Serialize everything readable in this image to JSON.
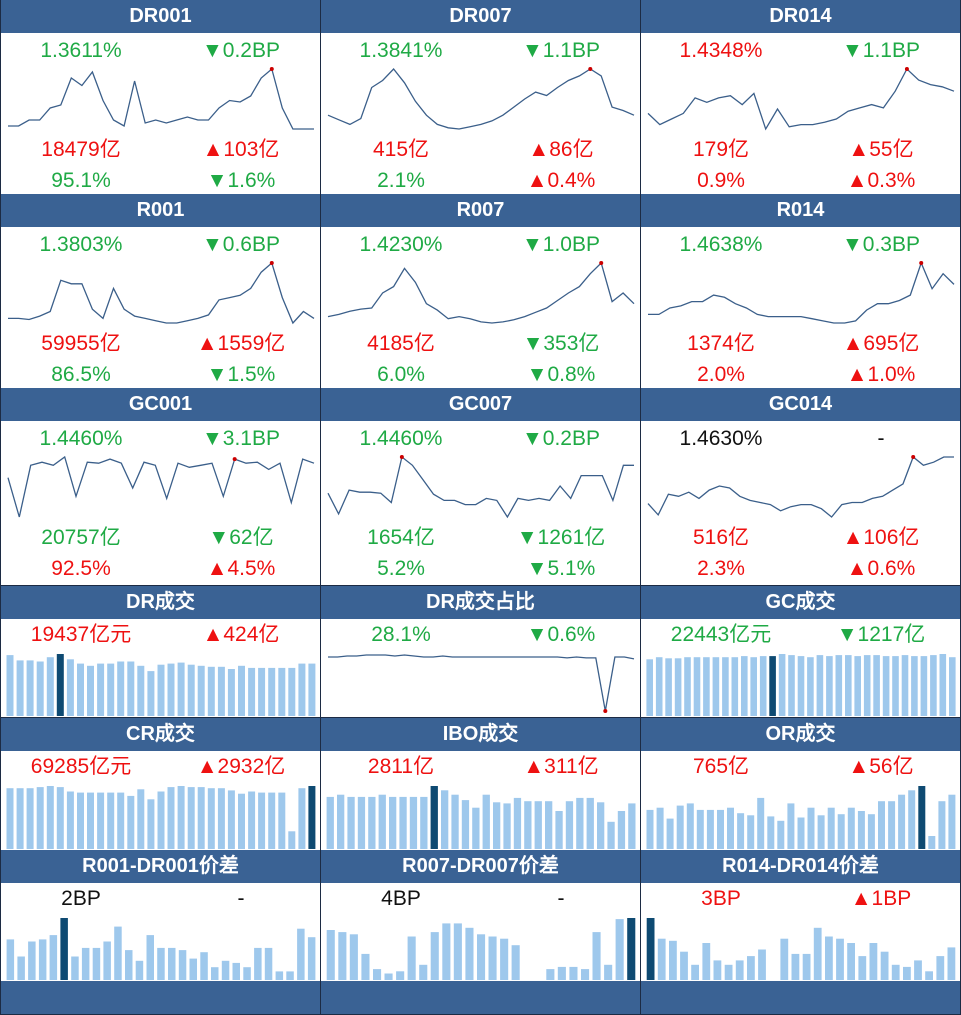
{
  "colors": {
    "header_bg": "#3a6294",
    "up": "#ee1111",
    "down": "#1faa45",
    "line": "#3b5f8a",
    "bar": "#9ec8ec",
    "bar_current": "#0e4a72",
    "peak": "#cc0000"
  },
  "panels": [
    {
      "id": "dr001",
      "title": "DR001",
      "rate": "1.3611%",
      "rate_color": "g",
      "rate_change": "▼0.2BP",
      "rate_change_color": "g",
      "volume": "18479亿",
      "volume_color": "r",
      "volume_change": "▲103亿",
      "volume_change_color": "r",
      "share": "95.1%",
      "share_color": "g",
      "share_change": "▼1.6%",
      "share_change_color": "g",
      "chart_data": {
        "type": "line",
        "values": [
          42,
          42,
          38,
          38,
          30,
          28,
          10,
          15,
          6,
          25,
          38,
          42,
          12,
          40,
          38,
          40,
          38,
          36,
          38,
          38,
          30,
          25,
          26,
          22,
          10,
          4,
          30,
          44,
          44,
          44
        ],
        "peak_index": 25
      }
    },
    {
      "id": "dr007",
      "title": "DR007",
      "rate": "1.3841%",
      "rate_color": "g",
      "rate_change": "▼1.1BP",
      "rate_change_color": "g",
      "volume": "415亿",
      "volume_color": "r",
      "volume_change": "▲86亿",
      "volume_change_color": "r",
      "share": "2.1%",
      "share_color": "g",
      "share_change": "▲0.4%",
      "share_change_color": "r",
      "chart_data": {
        "type": "line",
        "values": [
          42,
          46,
          50,
          45,
          18,
          12,
          2,
          14,
          30,
          42,
          50,
          53,
          54,
          52,
          50,
          47,
          42,
          35,
          28,
          22,
          25,
          18,
          12,
          8,
          2,
          8,
          35,
          38,
          42
        ],
        "peak_index": 24
      }
    },
    {
      "id": "dr014",
      "title": "DR014",
      "rate": "1.4348%",
      "rate_color": "r",
      "rate_change": "▼1.1BP",
      "rate_change_color": "g",
      "volume": "179亿",
      "volume_color": "r",
      "volume_change": "▲55亿",
      "volume_change_color": "r",
      "share": "0.9%",
      "share_color": "r",
      "share_change": "▲0.3%",
      "share_change_color": "r",
      "chart_data": {
        "type": "line",
        "values": [
          40,
          50,
          45,
          40,
          26,
          30,
          26,
          24,
          32,
          22,
          54,
          36,
          52,
          50,
          50,
          48,
          45,
          38,
          35,
          32,
          35,
          20,
          0,
          10,
          14,
          16,
          20
        ],
        "peak_index": 22
      }
    },
    {
      "id": "r001",
      "title": "R001",
      "rate": "1.3803%",
      "rate_color": "g",
      "rate_change": "▼0.6BP",
      "rate_change_color": "g",
      "volume": "59955亿",
      "volume_color": "r",
      "volume_change": "▲1559亿",
      "volume_change_color": "r",
      "share": "86.5%",
      "share_color": "g",
      "share_change": "▼1.5%",
      "share_change_color": "g",
      "chart_data": {
        "type": "line",
        "values": [
          48,
          48,
          49,
          46,
          42,
          15,
          18,
          18,
          40,
          48,
          22,
          40,
          46,
          48,
          50,
          52,
          52,
          50,
          48,
          45,
          32,
          30,
          28,
          22,
          8,
          0,
          30,
          52,
          42,
          48
        ],
        "peak_index": 25
      }
    },
    {
      "id": "r007",
      "title": "R007",
      "rate": "1.4230%",
      "rate_color": "g",
      "rate_change": "▼1.0BP",
      "rate_change_color": "g",
      "volume": "4185亿",
      "volume_color": "r",
      "volume_change": "▼353亿",
      "volume_change_color": "g",
      "share": "6.0%",
      "share_color": "g",
      "share_change": "▼0.8%",
      "share_change_color": "g",
      "chart_data": {
        "type": "line",
        "values": [
          50,
          48,
          45,
          43,
          42,
          28,
          22,
          5,
          18,
          38,
          44,
          52,
          50,
          52,
          55,
          56,
          55,
          53,
          50,
          46,
          42,
          35,
          28,
          22,
          10,
          0,
          36,
          28,
          38
        ],
        "peak_index": 25
      }
    },
    {
      "id": "r014",
      "title": "R014",
      "rate": "1.4638%",
      "rate_color": "g",
      "rate_change": "▼0.3BP",
      "rate_change_color": "g",
      "volume": "1374亿",
      "volume_color": "r",
      "volume_change": "▲695亿",
      "volume_change_color": "r",
      "share": "2.0%",
      "share_color": "r",
      "share_change": "▲1.0%",
      "share_change_color": "r",
      "chart_data": {
        "type": "line",
        "values": [
          48,
          48,
          42,
          40,
          36,
          36,
          30,
          32,
          38,
          42,
          48,
          50,
          50,
          50,
          50,
          52,
          54,
          56,
          56,
          54,
          44,
          38,
          38,
          35,
          30,
          0,
          24,
          10,
          20
        ],
        "peak_index": 25
      }
    },
    {
      "id": "gc001",
      "title": "GC001",
      "rate": "1.4460%",
      "rate_color": "g",
      "rate_change": "▼3.1BP",
      "rate_change_color": "g",
      "volume": "20757亿",
      "volume_color": "g",
      "volume_change": "▼62亿",
      "volume_change_color": "g",
      "share": "92.5%",
      "share_color": "r",
      "share_change": "▲4.5%",
      "share_change_color": "r",
      "chart_data": {
        "type": "line",
        "values": [
          20,
          58,
          8,
          5,
          8,
          0,
          38,
          5,
          6,
          2,
          6,
          30,
          5,
          8,
          40,
          6,
          10,
          8,
          6,
          38,
          2,
          6,
          5,
          12,
          6,
          44,
          2,
          6
        ],
        "peak_index": 20
      }
    },
    {
      "id": "gc007",
      "title": "GC007",
      "rate": "1.4460%",
      "rate_color": "g",
      "rate_change": "▼0.2BP",
      "rate_change_color": "g",
      "volume": "1654亿",
      "volume_color": "g",
      "volume_change": "▼1261亿",
      "volume_change_color": "g",
      "share": "5.2%",
      "share_color": "g",
      "share_change": "▼5.1%",
      "share_change_color": "g",
      "chart_data": {
        "type": "line",
        "values": [
          35,
          55,
          32,
          34,
          34,
          35,
          44,
          0,
          8,
          22,
          36,
          42,
          42,
          46,
          46,
          40,
          42,
          58,
          40,
          42,
          40,
          42,
          28,
          40,
          18,
          18,
          18,
          42,
          8,
          8
        ],
        "peak_index": 7
      }
    },
    {
      "id": "gc014",
      "title": "GC014",
      "rate": "1.4630%",
      "rate_color": "k",
      "rate_change": "-",
      "rate_change_color": "k",
      "volume": "516亿",
      "volume_color": "r",
      "volume_change": "▲106亿",
      "volume_change_color": "r",
      "share": "2.3%",
      "share_color": "r",
      "share_change": "▲0.6%",
      "share_change_color": "r",
      "chart_data": {
        "type": "line",
        "values": [
          45,
          56,
          36,
          38,
          34,
          40,
          32,
          28,
          30,
          38,
          42,
          44,
          46,
          52,
          48,
          46,
          46,
          50,
          58,
          46,
          44,
          44,
          40,
          38,
          32,
          26,
          0,
          8,
          5,
          0,
          0
        ],
        "peak_index": 26
      }
    },
    {
      "id": "dr-volume",
      "title": "DR成交",
      "value": "19437亿元",
      "value_color": "r",
      "change": "▲424亿",
      "change_color": "r",
      "chart_data": {
        "type": "bar",
        "values": [
          57,
          52,
          52,
          51,
          55,
          58,
          53,
          49,
          47,
          49,
          49,
          51,
          51,
          47,
          42,
          48,
          49,
          50,
          48,
          47,
          46,
          46,
          44,
          47,
          45,
          45,
          45,
          45,
          45,
          49,
          49
        ],
        "current_index": 5
      }
    },
    {
      "id": "dr-share",
      "title": "DR成交占比",
      "value": "28.1%",
      "value_color": "g",
      "change": "▼0.6%",
      "change_color": "g",
      "chart_data": {
        "type": "line",
        "values": [
          3,
          3,
          2,
          2,
          1,
          1,
          1,
          2,
          1,
          2,
          3,
          3,
          2,
          3,
          3,
          3,
          3,
          3,
          3,
          3,
          3,
          3,
          3,
          3,
          3,
          4,
          3,
          4,
          4,
          58,
          3,
          3,
          5
        ],
        "peak_index": 29
      }
    },
    {
      "id": "gc-volume",
      "title": "GC成交",
      "value": "22443亿元",
      "value_color": "g",
      "change": "▼1217亿",
      "change_color": "g",
      "chart_data": {
        "type": "bar",
        "values": [
          53,
          55,
          54,
          54,
          55,
          55,
          55,
          55,
          55,
          55,
          56,
          55,
          56,
          56,
          58,
          57,
          56,
          55,
          57,
          56,
          57,
          57,
          56,
          57,
          57,
          56,
          56,
          57,
          56,
          56,
          57,
          58,
          55
        ],
        "current_index": 13
      }
    },
    {
      "id": "cr-volume",
      "title": "CR成交",
      "value": "69285亿元",
      "value_color": "r",
      "change": "▲2932亿",
      "change_color": "r",
      "chart_data": {
        "type": "bar",
        "values": [
          55,
          55,
          55,
          56,
          57,
          56,
          52,
          51,
          51,
          51,
          51,
          51,
          48,
          54,
          45,
          52,
          56,
          57,
          56,
          56,
          55,
          55,
          53,
          50,
          52,
          51,
          51,
          51,
          16,
          55,
          57
        ],
        "current_index": 30
      }
    },
    {
      "id": "ibo-volume",
      "title": "IBO成交",
      "value": "2811亿",
      "value_color": "r",
      "change": "▲311亿",
      "change_color": "r",
      "chart_data": {
        "type": "bar",
        "values": [
          48,
          50,
          48,
          48,
          48,
          50,
          48,
          48,
          48,
          48,
          58,
          54,
          50,
          45,
          38,
          50,
          43,
          42,
          47,
          44,
          44,
          44,
          35,
          44,
          47,
          47,
          43,
          25,
          35,
          42
        ],
        "current_index": 10
      }
    },
    {
      "id": "or-volume",
      "title": "OR成交",
      "value": "765亿",
      "value_color": "r",
      "change": "▲56亿",
      "change_color": "r",
      "chart_data": {
        "type": "bar",
        "values": [
          36,
          38,
          28,
          40,
          42,
          36,
          36,
          36,
          38,
          33,
          31,
          47,
          30,
          26,
          42,
          29,
          38,
          31,
          38,
          32,
          38,
          35,
          32,
          44,
          44,
          50,
          54,
          58,
          12,
          44,
          50
        ],
        "current_index": 27
      }
    },
    {
      "id": "r001-dr001-spread",
      "title": "R001-DR001价差",
      "value": "2BP",
      "value_color": "k",
      "change": "-",
      "change_color": "k",
      "chart_data": {
        "type": "bar",
        "values": [
          38,
          22,
          36,
          38,
          42,
          58,
          22,
          30,
          30,
          36,
          50,
          28,
          18,
          42,
          30,
          30,
          28,
          20,
          26,
          12,
          18,
          16,
          12,
          30,
          30,
          8,
          8,
          48,
          40
        ],
        "current_index": 5
      }
    },
    {
      "id": "r007-dr007-spread",
      "title": "R007-DR007价差",
      "value": "4BP",
      "value_color": "k",
      "change": "-",
      "change_color": "k",
      "chart_data": {
        "type": "bar",
        "values": [
          46,
          44,
          42,
          24,
          10,
          6,
          8,
          40,
          14,
          44,
          52,
          52,
          48,
          42,
          40,
          38,
          32,
          0,
          0,
          10,
          12,
          12,
          10,
          44,
          14,
          56,
          57
        ],
        "current_index": 26
      }
    },
    {
      "id": "r014-dr014-spread",
      "title": "R014-DR014价差",
      "value": "3BP",
      "value_color": "r",
      "change": "▲1BP",
      "change_color": "r",
      "chart_data": {
        "type": "bar",
        "values": [
          57,
          38,
          36,
          26,
          14,
          34,
          18,
          14,
          18,
          22,
          28,
          0,
          38,
          24,
          24,
          48,
          40,
          38,
          34,
          22,
          34,
          26,
          14,
          12,
          18,
          8,
          22,
          30
        ],
        "current_index": 0
      }
    }
  ]
}
